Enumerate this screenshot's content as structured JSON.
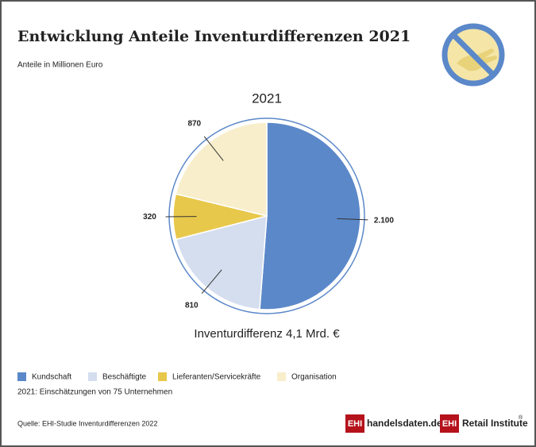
{
  "chart_data": {
    "type": "pie",
    "title": "Entwicklung Anteile Inventurdifferenzen 2021",
    "subtitle": "Anteile in Millionen Euro",
    "pie_title": "2021",
    "total_label": "Inventurdifferenz 4,1 Mrd. €",
    "categories": [
      "Kundschaft",
      "Beschäftigte",
      "Lieferanten/Servicekräfte",
      "Organisation"
    ],
    "values": [
      2100,
      810,
      320,
      870
    ],
    "value_labels": [
      "2.100",
      "810",
      "320",
      "870"
    ],
    "colors": [
      "#5b88c9",
      "#d4deef",
      "#e8c84a",
      "#f8eecb"
    ],
    "note": "2021: Einschätzungen von 75 Unternehmen",
    "source": "Quelle: EHI-Studie Inventurdifferenzen 2022",
    "logos": [
      "EHI",
      "handelsdaten.de",
      "EHI",
      "Retail Institute",
      "®"
    ]
  }
}
